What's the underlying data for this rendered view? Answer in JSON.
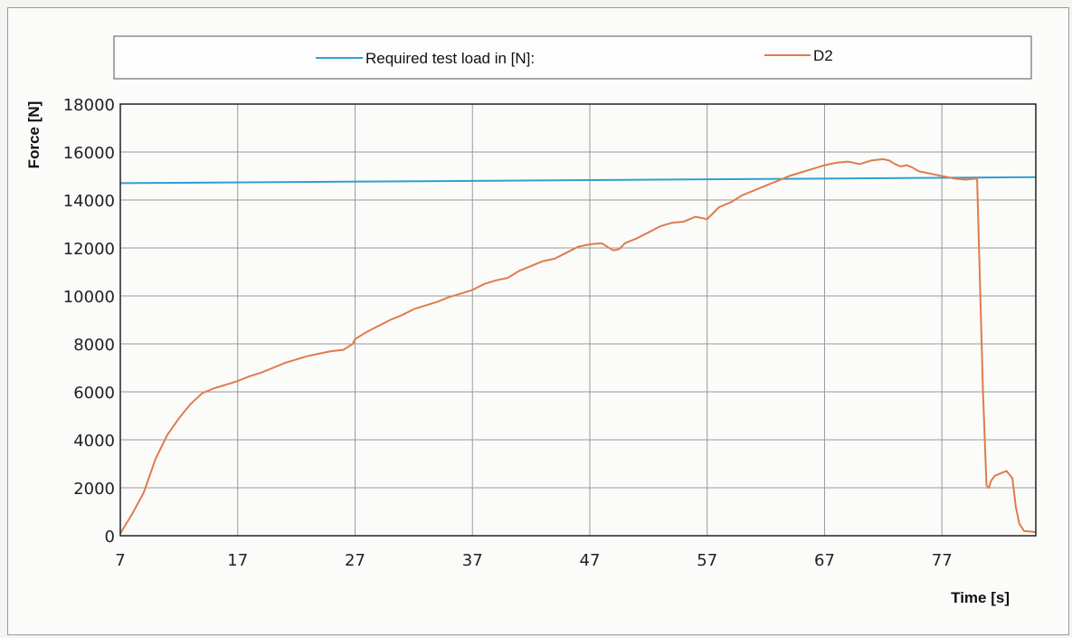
{
  "chart_data": {
    "type": "line",
    "xlabel": "Time [s]",
    "ylabel": "Force [N]",
    "xlim": [
      7,
      85
    ],
    "ylim": [
      0,
      18000
    ],
    "x_ticks": [
      "7",
      "17",
      "27",
      "37",
      "47",
      "57",
      "67",
      "77"
    ],
    "y_ticks": [
      "0",
      "2000",
      "4000",
      "6000",
      "8000",
      "10000",
      "12000",
      "14000",
      "16000",
      "18000"
    ],
    "grid": true,
    "legend_position": "top",
    "series": [
      {
        "name": "Required test load in [N]:",
        "color": "#2f9fd0",
        "x": [
          7,
          85
        ],
        "y": [
          14700,
          14950
        ]
      },
      {
        "name": "D2",
        "color": "#e07b4c",
        "x": [
          7,
          8,
          9,
          10,
          11,
          12,
          13,
          14,
          15,
          16,
          17,
          18,
          19,
          20,
          21,
          22,
          23,
          24,
          25,
          26,
          26.8,
          27,
          27.5,
          28,
          29,
          30,
          31,
          32,
          33,
          34,
          35,
          36,
          37,
          38,
          39,
          40,
          41,
          42,
          43,
          44,
          45,
          46,
          47,
          48,
          49,
          49.5,
          50,
          51,
          52,
          53,
          54,
          55,
          56,
          57,
          58,
          59,
          60,
          61,
          62,
          63,
          64,
          65,
          66,
          67,
          68,
          69,
          70,
          71,
          72,
          72.5,
          73,
          73.5,
          74,
          74.5,
          75,
          75.5,
          76,
          77,
          78,
          79,
          80,
          80.5,
          80.8,
          81,
          81.2,
          81.5,
          82,
          82.5,
          83,
          83.3,
          83.6,
          84,
          85
        ],
        "y": [
          100,
          900,
          1800,
          3200,
          4200,
          4900,
          5500,
          5950,
          6150,
          6300,
          6450,
          6650,
          6800,
          7000,
          7200,
          7350,
          7500,
          7600,
          7700,
          7750,
          8000,
          8200,
          8350,
          8500,
          8750,
          9000,
          9200,
          9450,
          9600,
          9750,
          9950,
          10100,
          10250,
          10500,
          10650,
          10750,
          11050,
          11250,
          11450,
          11550,
          11800,
          12050,
          12150,
          12200,
          11900,
          11950,
          12200,
          12400,
          12650,
          12900,
          13050,
          13100,
          13300,
          13200,
          13700,
          13900,
          14200,
          14400,
          14600,
          14800,
          15000,
          15150,
          15300,
          15450,
          15550,
          15600,
          15500,
          15650,
          15700,
          15650,
          15500,
          15400,
          15450,
          15350,
          15200,
          15150,
          15100,
          15000,
          14900,
          14850,
          14900,
          6000,
          2100,
          2000,
          2300,
          2500,
          2600,
          2700,
          2400,
          1200,
          500,
          200,
          150
        ]
      }
    ]
  }
}
